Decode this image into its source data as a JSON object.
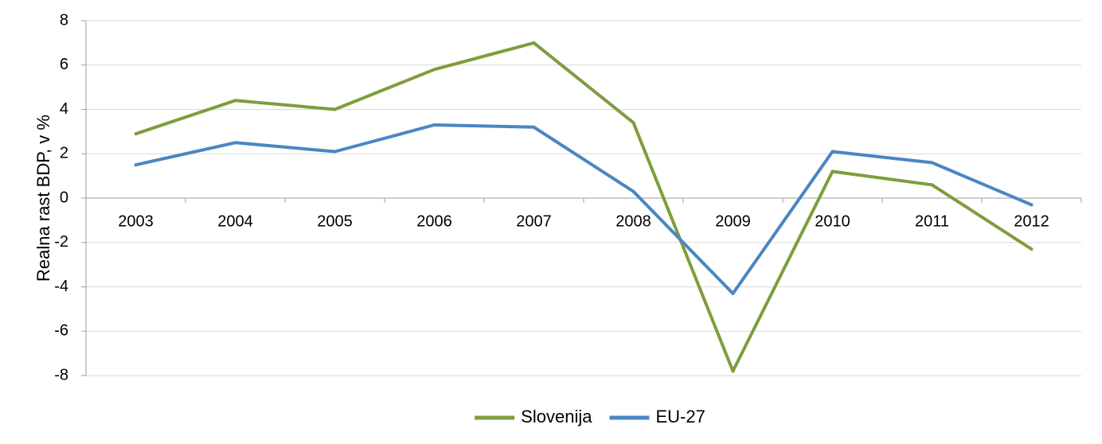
{
  "chart_data": {
    "type": "line",
    "title": "",
    "xlabel": "",
    "ylabel": "Realna rast BDP, v %",
    "categories": [
      "2003",
      "2004",
      "2005",
      "2006",
      "2007",
      "2008",
      "2009",
      "2010",
      "2011",
      "2012"
    ],
    "ylim": [
      -8,
      8
    ],
    "yticks": [
      -8,
      -6,
      -4,
      -2,
      0,
      2,
      4,
      6,
      8
    ],
    "grid": true,
    "legend_position": "bottom",
    "series": [
      {
        "name": "Slovenija",
        "color": "#7f9d3c",
        "values": [
          2.9,
          4.4,
          4.0,
          5.8,
          7.0,
          3.4,
          -7.8,
          1.2,
          0.6,
          -2.3
        ]
      },
      {
        "name": "EU-27",
        "color": "#4a86c2",
        "values": [
          1.5,
          2.5,
          2.1,
          3.3,
          3.2,
          0.3,
          -4.3,
          2.1,
          1.6,
          -0.3
        ]
      }
    ]
  }
}
